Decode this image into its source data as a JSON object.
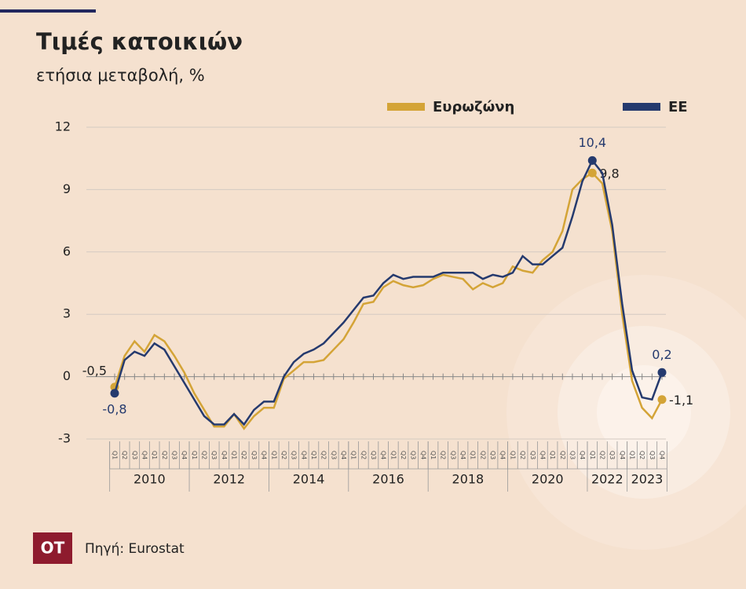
{
  "chart_data": {
    "type": "line",
    "title": "Τιμές κατοικιών",
    "subtitle": "ετήσια μεταβολή, %",
    "source": "Πηγή: Eurostat",
    "logo": "OT",
    "categories": [
      "Q1",
      "Q2",
      "Q3",
      "Q4",
      "Q1",
      "Q2",
      "Q3",
      "Q4",
      "Q1",
      "Q2",
      "Q3",
      "Q4",
      "Q1",
      "Q2",
      "Q3",
      "Q4",
      "Q1",
      "Q2",
      "Q3",
      "Q4",
      "Q1",
      "Q2",
      "Q3",
      "Q4",
      "Q1",
      "Q2",
      "Q3",
      "Q4",
      "Q1",
      "Q2",
      "Q3",
      "Q4",
      "Q1",
      "Q2",
      "Q3",
      "Q4",
      "Q1",
      "Q2",
      "Q3",
      "Q4",
      "Q1",
      "Q2",
      "Q3",
      "Q4",
      "Q1",
      "Q2",
      "Q3",
      "Q4",
      "Q1",
      "Q2",
      "Q3",
      "Q4",
      "Q1",
      "Q2",
      "Q3",
      "Q4"
    ],
    "groups": [
      {
        "label": "2010",
        "quarters": 8
      },
      {
        "label": "2012",
        "quarters": 8
      },
      {
        "label": "2014",
        "quarters": 8
      },
      {
        "label": "2016",
        "quarters": 8
      },
      {
        "label": "2018",
        "quarters": 8
      },
      {
        "label": "2020",
        "quarters": 8
      },
      {
        "label": "2022",
        "quarters": 4
      },
      {
        "label": "2023",
        "quarters": 4
      }
    ],
    "series": [
      {
        "name": "Ευρωζώνη",
        "color": "#d4a437",
        "values": [
          -0.5,
          1.0,
          1.7,
          1.2,
          2.0,
          1.7,
          1.0,
          0.2,
          -0.8,
          -1.6,
          -2.4,
          -2.4,
          -1.8,
          -2.5,
          -1.9,
          -1.5,
          -1.5,
          -0.1,
          0.3,
          0.7,
          0.7,
          0.8,
          1.3,
          1.8,
          2.6,
          3.5,
          3.6,
          4.3,
          4.6,
          4.4,
          4.3,
          4.4,
          4.7,
          4.9,
          4.8,
          4.7,
          4.2,
          4.5,
          4.3,
          4.5,
          5.3,
          5.1,
          5.0,
          5.6,
          6.0,
          7.0,
          9.0,
          9.5,
          9.8,
          9.3,
          7.0,
          3.0,
          -0.2,
          -1.5,
          -2.0,
          -1.1
        ],
        "value_labels": [
          "-0,5",
          null,
          null,
          null,
          null,
          null,
          null,
          null,
          null,
          null,
          null,
          null,
          null,
          null,
          null,
          null,
          null,
          null,
          null,
          null,
          null,
          null,
          null,
          null,
          null,
          null,
          null,
          null,
          null,
          null,
          null,
          null,
          null,
          null,
          null,
          null,
          null,
          null,
          null,
          null,
          null,
          null,
          null,
          null,
          null,
          null,
          null,
          null,
          "9,8",
          null,
          null,
          null,
          null,
          null,
          null,
          "-1,1"
        ]
      },
      {
        "name": "ΕΕ",
        "color": "#253a6e",
        "values": [
          -0.8,
          0.8,
          1.2,
          1.0,
          1.6,
          1.3,
          0.5,
          -0.3,
          -1.1,
          -1.9,
          -2.3,
          -2.3,
          -1.8,
          -2.3,
          -1.6,
          -1.2,
          -1.2,
          0.0,
          0.7,
          1.1,
          1.3,
          1.6,
          2.1,
          2.6,
          3.2,
          3.8,
          3.9,
          4.5,
          4.9,
          4.7,
          4.8,
          4.8,
          4.8,
          5.0,
          5.0,
          5.0,
          5.0,
          4.7,
          4.9,
          4.8,
          5.0,
          5.8,
          5.4,
          5.4,
          5.8,
          6.2,
          7.7,
          9.4,
          10.4,
          9.8,
          7.3,
          3.5,
          0.3,
          -1.0,
          -1.1,
          0.2
        ],
        "value_labels": [
          "-0,8",
          null,
          null,
          null,
          null,
          null,
          null,
          null,
          null,
          null,
          null,
          null,
          null,
          null,
          null,
          null,
          null,
          null,
          null,
          null,
          null,
          null,
          null,
          null,
          null,
          null,
          null,
          null,
          null,
          null,
          null,
          null,
          null,
          null,
          null,
          null,
          null,
          null,
          null,
          null,
          null,
          null,
          null,
          null,
          null,
          null,
          null,
          null,
          "10,4",
          null,
          null,
          null,
          null,
          null,
          null,
          "0,2"
        ]
      }
    ],
    "ylim": [
      -3,
      12
    ],
    "yticks": [
      -3,
      0,
      3,
      6,
      9,
      12
    ],
    "grid": true,
    "legend": "top-right"
  }
}
